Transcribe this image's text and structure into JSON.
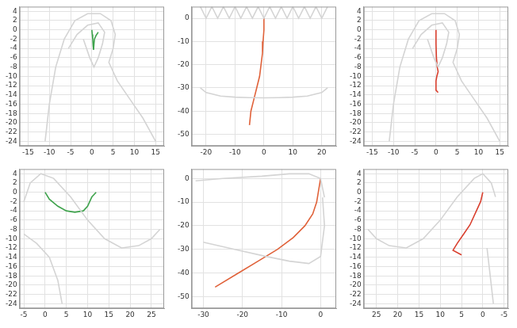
{
  "chart_data": [
    {
      "type": "line",
      "grid": true,
      "xlim": [
        -17,
        17
      ],
      "ylim": [
        -25,
        5
      ],
      "xticks": [
        -15,
        -10,
        -5,
        0,
        5,
        10,
        15
      ],
      "yticks": [
        4,
        2,
        0,
        -2,
        -4,
        -6,
        -8,
        -10,
        -12,
        -14,
        -16,
        -18,
        -20,
        -22,
        -24
      ],
      "series": [
        {
          "color": "#d4d4d4",
          "x": [
            -11,
            -10,
            -8.5,
            -6.5,
            -4,
            -1,
            2,
            4.5,
            5.5,
            5,
            4,
            6,
            9,
            12,
            15
          ],
          "values": [
            -24,
            -16,
            -8,
            -2,
            2,
            3.5,
            3.5,
            2,
            -1,
            -4,
            -7,
            -11,
            -15,
            -19,
            -24
          ]
        },
        {
          "color": "#d4d4d4",
          "x": [
            -5.5,
            -3.5,
            -1,
            1.5,
            3,
            2.5,
            1.5,
            0.5,
            -0.5,
            -2
          ],
          "values": [
            -4,
            -1,
            1,
            1.5,
            -0.5,
            -3,
            -6,
            -8,
            -6,
            -2
          ]
        },
        {
          "color": "#3fa34d",
          "x": [
            0,
            0.1,
            0.2,
            0.3,
            0.4,
            0.5,
            0.6,
            1,
            1.5
          ],
          "values": [
            0,
            -1,
            -2,
            -3.5,
            -4.3,
            -3,
            -2,
            -1.2,
            -0.5
          ]
        }
      ]
    },
    {
      "type": "line",
      "grid": true,
      "xlim": [
        -25,
        25
      ],
      "ylim": [
        -55,
        5
      ],
      "xticks": [
        -20,
        -10,
        0,
        10,
        20
      ],
      "yticks": [
        0,
        -10,
        -20,
        -30,
        -40,
        -50
      ],
      "series": [
        {
          "color": "#d4d4d4",
          "x": [
            -22,
            -20,
            -15,
            -10,
            -5,
            0,
            5,
            10,
            15,
            20,
            22
          ],
          "values": [
            -30,
            -32,
            -33.5,
            -34,
            -34.2,
            -34.3,
            -34.2,
            -34,
            -33.5,
            -32,
            -30
          ]
        },
        {
          "color": "#d4d4d4",
          "x": [
            -22,
            -20,
            -18,
            -16,
            -14,
            -12,
            -10,
            -8,
            -6,
            -4,
            -2,
            0,
            2,
            4,
            6,
            8,
            10,
            12,
            14,
            16,
            18,
            20,
            22
          ],
          "values": [
            5,
            0,
            5,
            0,
            5,
            0,
            5,
            0,
            5,
            0,
            5,
            0,
            5,
            0,
            5,
            0,
            5,
            0,
            5,
            0,
            5,
            0,
            5
          ]
        },
        {
          "color": "#e0623a",
          "x": [
            0,
            0,
            -0.3,
            -0.5,
            -1,
            -1.5,
            -2.5,
            -3.5,
            -4.5,
            -5
          ],
          "values": [
            0,
            -5,
            -10,
            -15,
            -20,
            -25,
            -30,
            -35,
            -40,
            -46
          ]
        }
      ]
    },
    {
      "type": "line",
      "grid": true,
      "xlim": [
        -17,
        17
      ],
      "ylim": [
        -25,
        5
      ],
      "xticks": [
        -15,
        -10,
        -5,
        0,
        5,
        10,
        15
      ],
      "yticks": [
        4,
        2,
        0,
        -2,
        -4,
        -6,
        -8,
        -10,
        -12,
        -14,
        -16,
        -18,
        -20,
        -22,
        -24
      ],
      "series": [
        {
          "color": "#d4d4d4",
          "x": [
            -11,
            -10,
            -8.5,
            -6.5,
            -4,
            -1,
            2,
            4.5,
            5.5,
            5,
            4,
            6,
            9,
            12,
            15
          ],
          "values": [
            -24,
            -16,
            -8,
            -2,
            2,
            3.5,
            3.5,
            2,
            -1,
            -4,
            -7,
            -11,
            -15,
            -19,
            -24
          ]
        },
        {
          "color": "#d4d4d4",
          "x": [
            -5.5,
            -3.5,
            -1,
            1.5,
            3,
            2.5,
            1.5,
            0.5,
            -0.5,
            -2
          ],
          "values": [
            -4,
            -1,
            1,
            1.5,
            -0.5,
            -3,
            -6,
            -8,
            -6,
            -2
          ]
        },
        {
          "color": "#d9402f",
          "x": [
            0,
            0,
            0.1,
            0.3,
            0.5,
            0.2,
            0,
            0,
            0.5
          ],
          "values": [
            0,
            -3,
            -6,
            -8,
            -9,
            -10,
            -11,
            -13,
            -13.5
          ]
        }
      ]
    },
    {
      "type": "line",
      "grid": true,
      "xlim": [
        -6,
        28
      ],
      "ylim": [
        -25,
        5
      ],
      "xticks": [
        -5,
        0,
        5,
        10,
        15,
        20,
        25
      ],
      "yticks": [
        4,
        2,
        0,
        -2,
        -4,
        -6,
        -8,
        -10,
        -12,
        -14,
        -16,
        -18,
        -20,
        -22,
        -24
      ],
      "series": [
        {
          "color": "#d4d4d4",
          "x": [
            -5,
            -3.5,
            -1,
            2,
            6,
            10,
            14,
            18,
            22,
            25,
            27
          ],
          "values": [
            -2,
            2,
            4,
            3,
            -1,
            -6,
            -10,
            -12,
            -11.5,
            -10,
            -8
          ]
        },
        {
          "color": "#d4d4d4",
          "x": [
            -5,
            -2,
            1,
            3,
            4
          ],
          "values": [
            -9,
            -11,
            -14,
            -19,
            -24
          ]
        },
        {
          "color": "#3fa34d",
          "x": [
            0,
            1,
            3,
            5,
            7,
            9,
            10,
            10.5,
            11,
            12
          ],
          "values": [
            0,
            -1.5,
            -3,
            -4,
            -4.3,
            -4,
            -3,
            -2,
            -1,
            0
          ]
        }
      ]
    },
    {
      "type": "line",
      "grid": true,
      "xlim": [
        -33,
        4
      ],
      "ylim": [
        -55,
        4
      ],
      "xticks": [
        -30,
        -20,
        -10,
        0
      ],
      "yticks": [
        0,
        -10,
        -20,
        -30,
        -40,
        -50
      ],
      "series": [
        {
          "color": "#d4d4d4",
          "x": [
            -32,
            -25,
            -15,
            -8,
            -3,
            0,
            1
          ],
          "values": [
            -1,
            0,
            1,
            2,
            2,
            0,
            -8
          ]
        },
        {
          "color": "#d4d4d4",
          "x": [
            -30,
            -22,
            -14,
            -8,
            -3,
            0,
            1,
            0.5
          ],
          "values": [
            -27,
            -30,
            -33,
            -35,
            -36,
            -33,
            -20,
            -8
          ]
        },
        {
          "color": "#e0623a",
          "x": [
            0,
            -0.5,
            -1,
            -2,
            -4,
            -7,
            -11,
            -16,
            -21,
            -27
          ],
          "values": [
            0,
            -5,
            -10,
            -15,
            -20,
            -25,
            -30,
            -35,
            -40,
            -46
          ]
        }
      ]
    },
    {
      "type": "line",
      "grid": true,
      "xlim": [
        28,
        -6
      ],
      "ylim": [
        -25,
        5
      ],
      "xticks": [
        25,
        20,
        15,
        10,
        5,
        0,
        -5
      ],
      "yticks": [
        4,
        2,
        0,
        -2,
        -4,
        -6,
        -8,
        -10,
        -12,
        -14,
        -16,
        -18,
        -20,
        -22,
        -24
      ],
      "series": [
        {
          "color": "#d4d4d4",
          "x": [
            27,
            25,
            22,
            18,
            14,
            10,
            6,
            2,
            0,
            -2,
            -3
          ],
          "values": [
            -8,
            -10,
            -11.5,
            -12,
            -10,
            -6,
            -1,
            3,
            4,
            2,
            -1
          ]
        },
        {
          "color": "#d4d4d4",
          "x": [
            -1,
            -1.5,
            -2,
            -2.5
          ],
          "values": [
            -12,
            -16,
            -20,
            -24
          ]
        },
        {
          "color": "#d9402f",
          "x": [
            0,
            0.5,
            1.5,
            3,
            4.5,
            6,
            7,
            5
          ],
          "values": [
            0,
            -2,
            -4,
            -7,
            -9,
            -11,
            -12.5,
            -13.5
          ]
        }
      ]
    }
  ]
}
